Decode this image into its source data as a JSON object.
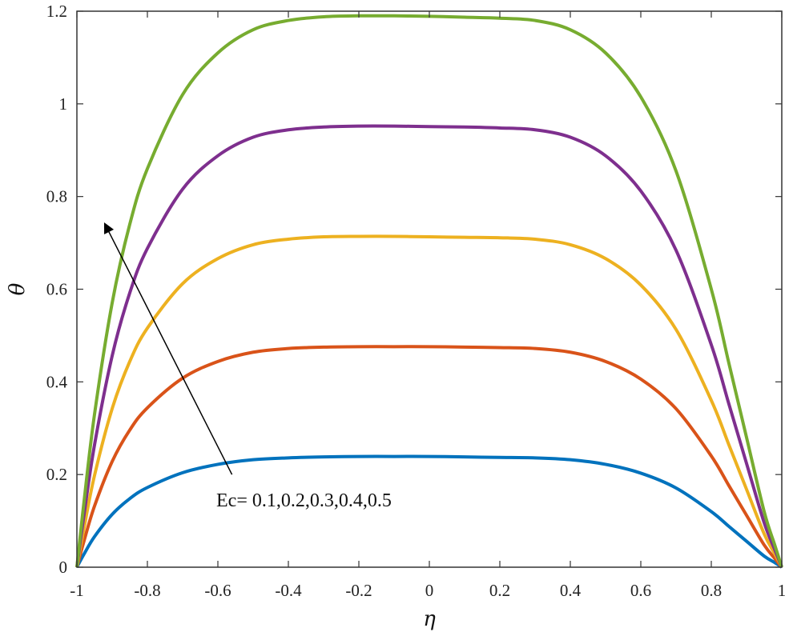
{
  "chart_data": {
    "type": "line",
    "title": "",
    "xlabel": "η",
    "ylabel": "θ",
    "xlim": [
      -1,
      1
    ],
    "ylim": [
      0,
      1.2
    ],
    "xticks": [
      -1,
      -0.8,
      -0.6,
      -0.4,
      -0.2,
      0,
      0.2,
      0.4,
      0.6,
      0.8,
      1
    ],
    "xtick_labels": [
      "-1",
      "-0.8",
      "-0.6",
      "-0.4",
      "-0.2",
      "0",
      "0.2",
      "0.4",
      "0.6",
      "0.8",
      "1"
    ],
    "yticks": [
      0,
      0.2,
      0.4,
      0.6,
      0.8,
      1,
      1.2
    ],
    "ytick_labels": [
      "0",
      "0.2",
      "0.4",
      "0.6",
      "0.8",
      "1",
      "1.2"
    ],
    "grid": false,
    "legend": "none",
    "x": [
      -1,
      -0.98,
      -0.95,
      -0.9,
      -0.85,
      -0.8,
      -0.7,
      -0.6,
      -0.5,
      -0.4,
      -0.3,
      -0.2,
      -0.1,
      0,
      0.1,
      0.2,
      0.3,
      0.4,
      0.5,
      0.6,
      0.7,
      0.8,
      0.85,
      0.9,
      0.95,
      0.98,
      1
    ],
    "series": [
      {
        "color": "#0072BD",
        "values": [
          0,
          0.028,
          0.066,
          0.114,
          0.148,
          0.172,
          0.204,
          0.222,
          0.232,
          0.236,
          0.238,
          0.239,
          0.239,
          0.239,
          0.238,
          0.237,
          0.236,
          0.232,
          0.222,
          0.203,
          0.171,
          0.12,
          0.088,
          0.056,
          0.024,
          0.01,
          0
        ]
      },
      {
        "color": "#D95319",
        "values": [
          0,
          0.056,
          0.132,
          0.228,
          0.296,
          0.344,
          0.408,
          0.444,
          0.464,
          0.472,
          0.475,
          0.476,
          0.476,
          0.476,
          0.475,
          0.474,
          0.472,
          0.464,
          0.444,
          0.406,
          0.342,
          0.24,
          0.176,
          0.112,
          0.048,
          0.019,
          0
        ]
      },
      {
        "color": "#EDB120",
        "values": [
          0,
          0.084,
          0.198,
          0.342,
          0.444,
          0.516,
          0.612,
          0.666,
          0.696,
          0.708,
          0.713,
          0.714,
          0.714,
          0.713,
          0.712,
          0.711,
          0.708,
          0.696,
          0.666,
          0.609,
          0.513,
          0.36,
          0.264,
          0.168,
          0.072,
          0.029,
          0
        ]
      },
      {
        "color": "#7E2F8E",
        "values": [
          0,
          0.112,
          0.264,
          0.456,
          0.592,
          0.688,
          0.816,
          0.888,
          0.928,
          0.944,
          0.95,
          0.952,
          0.952,
          0.951,
          0.95,
          0.948,
          0.944,
          0.928,
          0.888,
          0.812,
          0.684,
          0.48,
          0.352,
          0.224,
          0.096,
          0.038,
          0
        ]
      },
      {
        "color": "#77AC30",
        "values": [
          0,
          0.14,
          0.33,
          0.57,
          0.74,
          0.86,
          1.02,
          1.11,
          1.16,
          1.18,
          1.188,
          1.19,
          1.19,
          1.189,
          1.187,
          1.185,
          1.18,
          1.16,
          1.11,
          1.015,
          0.855,
          0.6,
          0.44,
          0.28,
          0.12,
          0.048,
          0
        ]
      }
    ],
    "annotation": {
      "text": "Ec= 0.1,0.2,0.3,0.4,0.5",
      "arrow_from": [
        -0.56,
        0.2
      ],
      "arrow_to": [
        -0.92,
        0.74
      ]
    },
    "line_width": 4
  }
}
